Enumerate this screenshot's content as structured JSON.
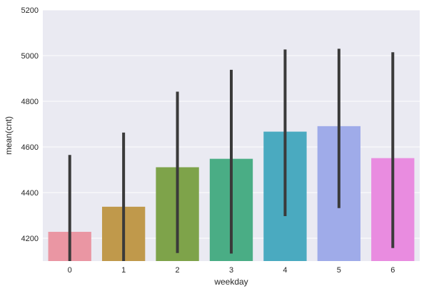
{
  "chart_data": {
    "type": "bar",
    "xlabel": "weekday",
    "ylabel": "mean(cnt)",
    "categories": [
      "0",
      "1",
      "2",
      "3",
      "4",
      "5",
      "6"
    ],
    "values": [
      4228,
      4338,
      4511,
      4548,
      4667,
      4691,
      4551
    ],
    "error_low": [
      4100,
      4100,
      4135,
      4133,
      4297,
      4332,
      4157
    ],
    "error_high": [
      4565,
      4663,
      4842,
      4938,
      5027,
      5030,
      5015
    ],
    "ylim": [
      4100,
      5200
    ],
    "yticks": [
      4200,
      4400,
      4600,
      4800,
      5000,
      5200
    ],
    "colors": [
      "#ea96a3",
      "#c0994b",
      "#7ea34a",
      "#4aad85",
      "#4aaac0",
      "#9fabe9",
      "#e98ce0"
    ],
    "error_color": "#3a3a3a",
    "background": "#eaeaf2",
    "grid": true,
    "legend": false
  }
}
